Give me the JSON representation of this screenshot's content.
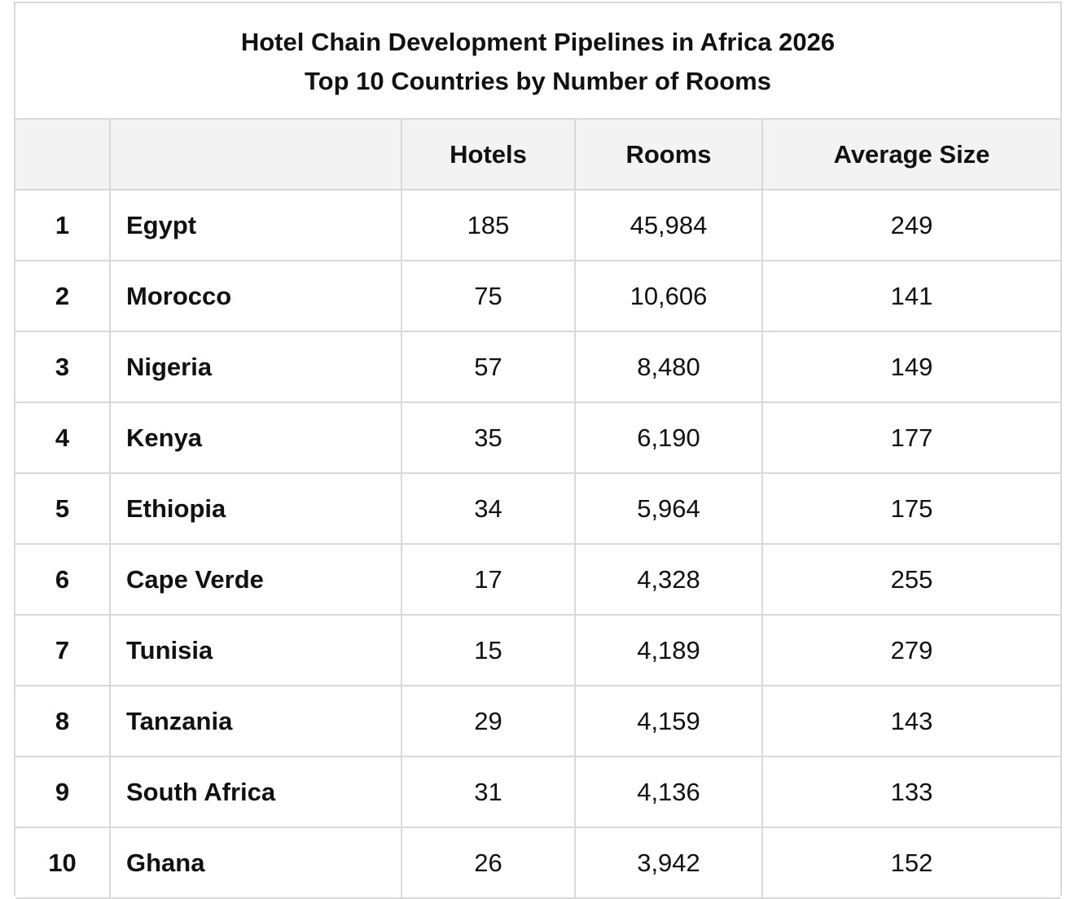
{
  "chart_data": {
    "type": "table",
    "title": "Hotel Chain Development Pipelines in Africa 2026",
    "subtitle": "Top 10 Countries by Number of Rooms",
    "columns": [
      "",
      "",
      "Hotels",
      "Rooms",
      "Average Size"
    ],
    "rows": [
      {
        "rank": "1",
        "country": "Egypt",
        "hotels": "185",
        "rooms": "45,984",
        "average_size": "249"
      },
      {
        "rank": "2",
        "country": "Morocco",
        "hotels": "75",
        "rooms": "10,606",
        "average_size": "141"
      },
      {
        "rank": "3",
        "country": "Nigeria",
        "hotels": "57",
        "rooms": "8,480",
        "average_size": "149"
      },
      {
        "rank": "4",
        "country": "Kenya",
        "hotels": "35",
        "rooms": "6,190",
        "average_size": "177"
      },
      {
        "rank": "5",
        "country": "Ethiopia",
        "hotels": "34",
        "rooms": "5,964",
        "average_size": "175"
      },
      {
        "rank": "6",
        "country": "Cape Verde",
        "hotels": "17",
        "rooms": "4,328",
        "average_size": "255"
      },
      {
        "rank": "7",
        "country": "Tunisia",
        "hotels": "15",
        "rooms": "4,189",
        "average_size": "279"
      },
      {
        "rank": "8",
        "country": "Tanzania",
        "hotels": "29",
        "rooms": "4,159",
        "average_size": "143"
      },
      {
        "rank": "9",
        "country": "South Africa",
        "hotels": "31",
        "rooms": "4,136",
        "average_size": "133"
      },
      {
        "rank": "10",
        "country": "Ghana",
        "hotels": "26",
        "rooms": "3,942",
        "average_size": "152"
      }
    ]
  },
  "colors": {
    "border": "#d9d9d9",
    "header_background": "#f3f3f3",
    "text": "#111111",
    "background": "#ffffff"
  }
}
